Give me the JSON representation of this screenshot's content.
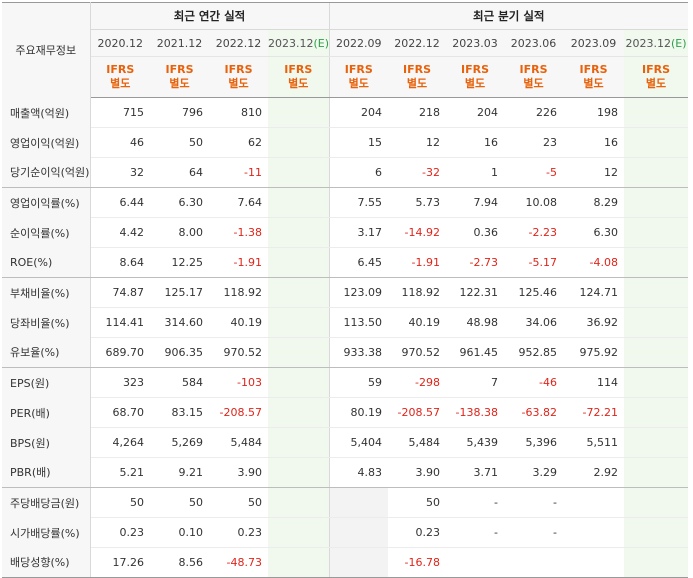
{
  "table": {
    "corner_label": "주요재무정보",
    "annual_title": "최근 연간 실적",
    "quarter_title": "최근 분기 실적",
    "annual_periods": [
      {
        "label": "2020.12",
        "suffix": ""
      },
      {
        "label": "2021.12",
        "suffix": ""
      },
      {
        "label": "2022.12",
        "suffix": ""
      },
      {
        "label": "2023.12",
        "suffix": "(E)"
      }
    ],
    "quarter_periods": [
      {
        "label": "2022.09",
        "suffix": ""
      },
      {
        "label": "2022.12",
        "suffix": ""
      },
      {
        "label": "2023.03",
        "suffix": ""
      },
      {
        "label": "2023.06",
        "suffix": ""
      },
      {
        "label": "2023.09",
        "suffix": ""
      },
      {
        "label": "2023.12",
        "suffix": "(E)"
      }
    ],
    "ifrs_line1": "IFRS",
    "ifrs_line2": "별도",
    "rows": [
      {
        "label": "매출액(억원)",
        "values": [
          "715",
          "796",
          "810",
          "",
          "204",
          "218",
          "204",
          "226",
          "198",
          ""
        ]
      },
      {
        "label": "영업이익(억원)",
        "values": [
          "46",
          "50",
          "62",
          "",
          "15",
          "12",
          "16",
          "23",
          "16",
          ""
        ]
      },
      {
        "label": "당기순이익(억원)",
        "values": [
          "32",
          "64",
          "-11",
          "",
          "6",
          "-32",
          "1",
          "-5",
          "12",
          ""
        ]
      },
      {
        "label": "영업이익률(%)",
        "values": [
          "6.44",
          "6.30",
          "7.64",
          "",
          "7.55",
          "5.73",
          "7.94",
          "10.08",
          "8.29",
          ""
        ]
      },
      {
        "label": "순이익률(%)",
        "values": [
          "4.42",
          "8.00",
          "-1.38",
          "",
          "3.17",
          "-14.92",
          "0.36",
          "-2.23",
          "6.30",
          ""
        ]
      },
      {
        "label": "ROE(%)",
        "values": [
          "8.64",
          "12.25",
          "-1.91",
          "",
          "6.45",
          "-1.91",
          "-2.73",
          "-5.17",
          "-4.08",
          ""
        ]
      },
      {
        "label": "부채비율(%)",
        "values": [
          "74.87",
          "125.17",
          "118.92",
          "",
          "123.09",
          "118.92",
          "122.31",
          "125.46",
          "124.71",
          ""
        ]
      },
      {
        "label": "당좌비율(%)",
        "values": [
          "114.41",
          "314.60",
          "40.19",
          "",
          "113.50",
          "40.19",
          "48.98",
          "34.06",
          "36.92",
          ""
        ]
      },
      {
        "label": "유보율(%)",
        "values": [
          "689.70",
          "906.35",
          "970.52",
          "",
          "933.38",
          "970.52",
          "961.45",
          "952.85",
          "975.92",
          ""
        ]
      },
      {
        "label": "EPS(원)",
        "values": [
          "323",
          "584",
          "-103",
          "",
          "59",
          "-298",
          "7",
          "-46",
          "114",
          ""
        ]
      },
      {
        "label": "PER(배)",
        "values": [
          "68.70",
          "83.15",
          "-208.57",
          "",
          "80.19",
          "-208.57",
          "-138.38",
          "-63.82",
          "-72.21",
          ""
        ]
      },
      {
        "label": "BPS(원)",
        "values": [
          "4,264",
          "5,269",
          "5,484",
          "",
          "5,404",
          "5,484",
          "5,439",
          "5,396",
          "5,511",
          ""
        ]
      },
      {
        "label": "PBR(배)",
        "values": [
          "5.21",
          "9.21",
          "3.90",
          "",
          "4.83",
          "3.90",
          "3.71",
          "3.29",
          "2.92",
          ""
        ]
      },
      {
        "label": "주당배당금(원)",
        "values": [
          "50",
          "50",
          "50",
          "",
          "",
          "50",
          "-",
          "-",
          "",
          ""
        ]
      },
      {
        "label": "시가배당률(%)",
        "values": [
          "0.23",
          "0.10",
          "0.23",
          "",
          "",
          "0.23",
          "-",
          "-",
          "",
          ""
        ]
      },
      {
        "label": "배당성향(%)",
        "values": [
          "17.26",
          "8.56",
          "-48.73",
          "",
          "",
          "-16.78",
          "",
          "",
          "",
          ""
        ]
      }
    ]
  }
}
